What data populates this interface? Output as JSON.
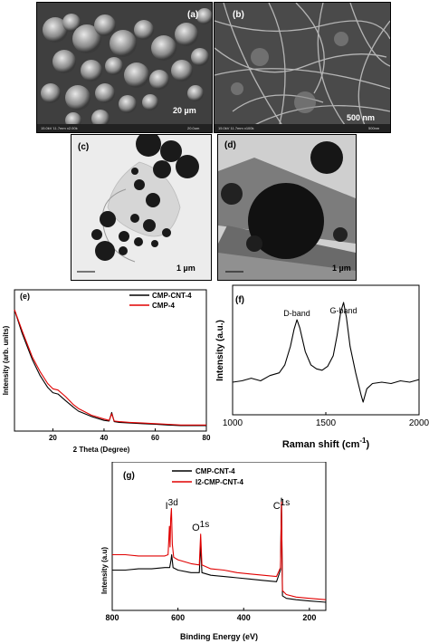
{
  "panels": {
    "a": {
      "label": "(a)",
      "scale": "20 µm",
      "meta": "15.0kV 11.7mm x2.00k",
      "meta_right": "20.0um"
    },
    "b": {
      "label": "(b)",
      "scale": "500 nm",
      "meta": "15.0kV 11.7mm x100k",
      "meta_right": "500nm"
    },
    "c": {
      "label": "(c)",
      "scale": "1 µm"
    },
    "d": {
      "label": "(d)",
      "scale": "1 µm"
    }
  },
  "chart_data": [
    {
      "panel": "(e)",
      "type": "line",
      "xlabel": "2 Theta (Degree)",
      "ylabel": "Intensity (arb. units)",
      "xlim": [
        5,
        80
      ],
      "xticks": [
        20,
        40,
        60,
        80
      ],
      "legend": "top-right",
      "series": [
        {
          "name": "CMP-CNT-4",
          "color": "#000000",
          "x": [
            5,
            8,
            10,
            12,
            15,
            18,
            20,
            22,
            25,
            28,
            30,
            35,
            40,
            42,
            43,
            44,
            46,
            50,
            55,
            60,
            65,
            70,
            75,
            80
          ],
          "y": [
            100,
            82,
            72,
            62,
            50,
            41,
            37,
            36,
            31,
            26,
            23,
            19,
            16,
            15.5,
            22,
            15,
            14.5,
            14,
            13.5,
            13,
            12.5,
            12,
            12,
            12
          ]
        },
        {
          "name": "CMP-4",
          "color": "#e00000",
          "x": [
            5,
            8,
            10,
            12,
            15,
            18,
            20,
            22,
            25,
            28,
            30,
            35,
            40,
            42,
            43,
            44,
            46,
            50,
            55,
            60,
            65,
            70,
            75,
            80
          ],
          "y": [
            100,
            84,
            74,
            64,
            53,
            44,
            40,
            39,
            34,
            28,
            25,
            20,
            17,
            16,
            21,
            15.5,
            15,
            14.5,
            14,
            13.5,
            13,
            12.5,
            12.5,
            12.5
          ]
        }
      ]
    },
    {
      "panel": "(f)",
      "type": "line",
      "xlabel": "Raman shift (cm",
      "xlabel_sup": "-1",
      "xlabel_end": ")",
      "ylabel": "Intensity (a.u.)",
      "xlim": [
        1000,
        2000
      ],
      "xticks": [
        1000,
        1500,
        2000
      ],
      "annotations": [
        {
          "text": "D-band",
          "x": 1345
        },
        {
          "text": "G-band",
          "x": 1595
        }
      ],
      "series": [
        {
          "name": "",
          "color": "#000000",
          "x": [
            1000,
            1050,
            1100,
            1150,
            1200,
            1250,
            1280,
            1310,
            1330,
            1345,
            1360,
            1390,
            1420,
            1450,
            1480,
            1510,
            1540,
            1560,
            1580,
            1595,
            1610,
            1630,
            1660,
            1690,
            1700,
            1720,
            1750,
            1800,
            1850,
            1900,
            1950,
            2000
          ],
          "y": [
            35,
            36,
            38,
            36,
            40,
            42,
            48,
            62,
            75,
            82,
            76,
            58,
            48,
            45,
            44,
            47,
            55,
            70,
            88,
            95,
            84,
            62,
            42,
            25,
            20,
            30,
            34,
            35,
            34,
            36,
            35,
            37
          ]
        }
      ]
    },
    {
      "panel": "(g)",
      "type": "line",
      "xlabel": "Binding Energy (eV)",
      "ylabel": "Intensity (a.u)",
      "xlim": [
        800,
        150
      ],
      "xticks": [
        800,
        600,
        400,
        200
      ],
      "legend": "top-center",
      "annotations": [
        {
          "text": "I",
          "sup": "3d",
          "x": 619
        },
        {
          "text": "O",
          "sup": "1s",
          "x": 531
        },
        {
          "text": "C",
          "sup": "1s",
          "x": 285
        }
      ],
      "series": [
        {
          "name": "CMP-CNT-4",
          "color": "#000000",
          "x": [
            800,
            760,
            720,
            680,
            640,
            625,
            621,
            619,
            615,
            600,
            560,
            535,
            531,
            527,
            500,
            460,
            420,
            380,
            340,
            300,
            288,
            285,
            282,
            270,
            240,
            200,
            150
          ],
          "y": [
            40,
            40,
            41,
            41,
            42,
            42,
            48,
            52,
            42,
            40,
            38,
            38,
            60,
            38,
            36,
            35,
            34,
            33,
            32,
            31,
            40,
            96,
            20,
            18,
            17,
            16,
            15
          ]
        },
        {
          "name": "I2-CMP-CNT-4",
          "color": "#e00000",
          "x": [
            800,
            760,
            720,
            680,
            640,
            630,
            626,
            624,
            622,
            620,
            617,
            613,
            600,
            560,
            535,
            531,
            527,
            500,
            460,
            420,
            380,
            340,
            300,
            288,
            285,
            282,
            270,
            240,
            200,
            150
          ],
          "y": [
            52,
            52,
            51,
            51,
            51,
            52,
            74,
            58,
            80,
            88,
            60,
            50,
            48,
            45,
            44,
            68,
            44,
            41,
            40,
            38,
            37,
            36,
            35,
            42,
            93,
            24,
            21,
            19,
            18,
            17
          ]
        }
      ]
    }
  ]
}
